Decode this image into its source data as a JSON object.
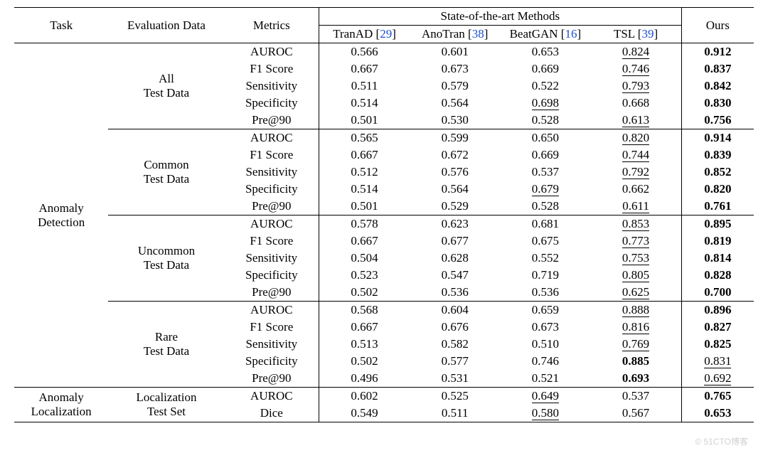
{
  "header": {
    "task": "Task",
    "eval": "Evaluation Data",
    "metrics": "Metrics",
    "sota": "State-of-the-art Methods",
    "ours": "Ours",
    "methods": [
      {
        "name": "TranAD",
        "cite": "29"
      },
      {
        "name": "AnoTran",
        "cite": "38"
      },
      {
        "name": "BeatGAN",
        "cite": "16"
      },
      {
        "name": "TSL",
        "cite": "39"
      }
    ]
  },
  "tasks": [
    {
      "name": "Anomaly\nDetection",
      "groups": [
        {
          "name": "All\nTest Data",
          "rows": [
            {
              "metric": "AUROC",
              "vals": [
                "0.566",
                "0.601",
                "0.653",
                "0.824"
              ],
              "ours": "0.912",
              "under_idx": 3,
              "bold": "ours"
            },
            {
              "metric": "F1 Score",
              "vals": [
                "0.667",
                "0.673",
                "0.669",
                "0.746"
              ],
              "ours": "0.837",
              "under_idx": 3,
              "bold": "ours"
            },
            {
              "metric": "Sensitivity",
              "vals": [
                "0.511",
                "0.579",
                "0.522",
                "0.793"
              ],
              "ours": "0.842",
              "under_idx": 3,
              "bold": "ours"
            },
            {
              "metric": "Specificity",
              "vals": [
                "0.514",
                "0.564",
                "0.698",
                "0.668"
              ],
              "ours": "0.830",
              "under_idx": 2,
              "bold": "ours"
            },
            {
              "metric": "Pre@90",
              "vals": [
                "0.501",
                "0.530",
                "0.528",
                "0.613"
              ],
              "ours": "0.756",
              "under_idx": 3,
              "bold": "ours"
            }
          ]
        },
        {
          "name": "Common\nTest Data",
          "rows": [
            {
              "metric": "AUROC",
              "vals": [
                "0.565",
                "0.599",
                "0.650",
                "0.820"
              ],
              "ours": "0.914",
              "under_idx": 3,
              "bold": "ours"
            },
            {
              "metric": "F1 Score",
              "vals": [
                "0.667",
                "0.672",
                "0.669",
                "0.744"
              ],
              "ours": "0.839",
              "under_idx": 3,
              "bold": "ours"
            },
            {
              "metric": "Sensitivity",
              "vals": [
                "0.512",
                "0.576",
                "0.537",
                "0.792"
              ],
              "ours": "0.852",
              "under_idx": 3,
              "bold": "ours"
            },
            {
              "metric": "Specificity",
              "vals": [
                "0.514",
                "0.564",
                "0.679",
                "0.662"
              ],
              "ours": "0.820",
              "under_idx": 2,
              "bold": "ours"
            },
            {
              "metric": "Pre@90",
              "vals": [
                "0.501",
                "0.529",
                "0.528",
                "0.611"
              ],
              "ours": "0.761",
              "under_idx": 3,
              "bold": "ours"
            }
          ]
        },
        {
          "name": "Uncommon\nTest Data",
          "rows": [
            {
              "metric": "AUROC",
              "vals": [
                "0.578",
                "0.623",
                "0.681",
                "0.853"
              ],
              "ours": "0.895",
              "under_idx": 3,
              "bold": "ours"
            },
            {
              "metric": "F1 Score",
              "vals": [
                "0.667",
                "0.677",
                "0.675",
                "0.773"
              ],
              "ours": "0.819",
              "under_idx": 3,
              "bold": "ours"
            },
            {
              "metric": "Sensitivity",
              "vals": [
                "0.504",
                "0.628",
                "0.552",
                "0.753"
              ],
              "ours": "0.814",
              "under_idx": 3,
              "bold": "ours"
            },
            {
              "metric": "Specificity",
              "vals": [
                "0.523",
                "0.547",
                "0.719",
                "0.805"
              ],
              "ours": "0.828",
              "under_idx": 3,
              "bold": "ours"
            },
            {
              "metric": "Pre@90",
              "vals": [
                "0.502",
                "0.536",
                "0.536",
                "0.625"
              ],
              "ours": "0.700",
              "under_idx": 3,
              "bold": "ours"
            }
          ]
        },
        {
          "name": "Rare\nTest Data",
          "rows": [
            {
              "metric": "AUROC",
              "vals": [
                "0.568",
                "0.604",
                "0.659",
                "0.888"
              ],
              "ours": "0.896",
              "under_idx": 3,
              "bold": "ours"
            },
            {
              "metric": "F1 Score",
              "vals": [
                "0.667",
                "0.676",
                "0.673",
                "0.816"
              ],
              "ours": "0.827",
              "under_idx": 3,
              "bold": "ours"
            },
            {
              "metric": "Sensitivity",
              "vals": [
                "0.513",
                "0.582",
                "0.510",
                "0.769"
              ],
              "ours": "0.825",
              "under_idx": 3,
              "bold": "ours"
            },
            {
              "metric": "Specificity",
              "vals": [
                "0.502",
                "0.577",
                "0.746",
                "0.885"
              ],
              "ours": "0.831",
              "under_idx": -1,
              "bold": 3,
              "ours_under": true
            },
            {
              "metric": "Pre@90",
              "vals": [
                "0.496",
                "0.531",
                "0.521",
                "0.693"
              ],
              "ours": "0.692",
              "under_idx": -1,
              "bold": 3,
              "ours_under": true
            }
          ]
        }
      ]
    },
    {
      "name": "Anomaly\nLocalization",
      "groups": [
        {
          "name": "Localization\nTest Set",
          "rows": [
            {
              "metric": "AUROC",
              "vals": [
                "0.602",
                "0.525",
                "0.649",
                "0.537"
              ],
              "ours": "0.765",
              "under_idx": 2,
              "bold": "ours"
            },
            {
              "metric": "Dice",
              "vals": [
                "0.549",
                "0.511",
                "0.580",
                "0.567"
              ],
              "ours": "0.653",
              "under_idx": 2,
              "bold": "ours"
            }
          ]
        }
      ]
    }
  ],
  "styling": {
    "font_family": "Times New Roman",
    "font_size_pt": 13,
    "text_color": "#000000",
    "cite_color": "#1a4fd6",
    "background": "#ffffff",
    "rule_color": "#000000",
    "top_rule_w": 1.2,
    "mid_rule_w": 0.6
  }
}
